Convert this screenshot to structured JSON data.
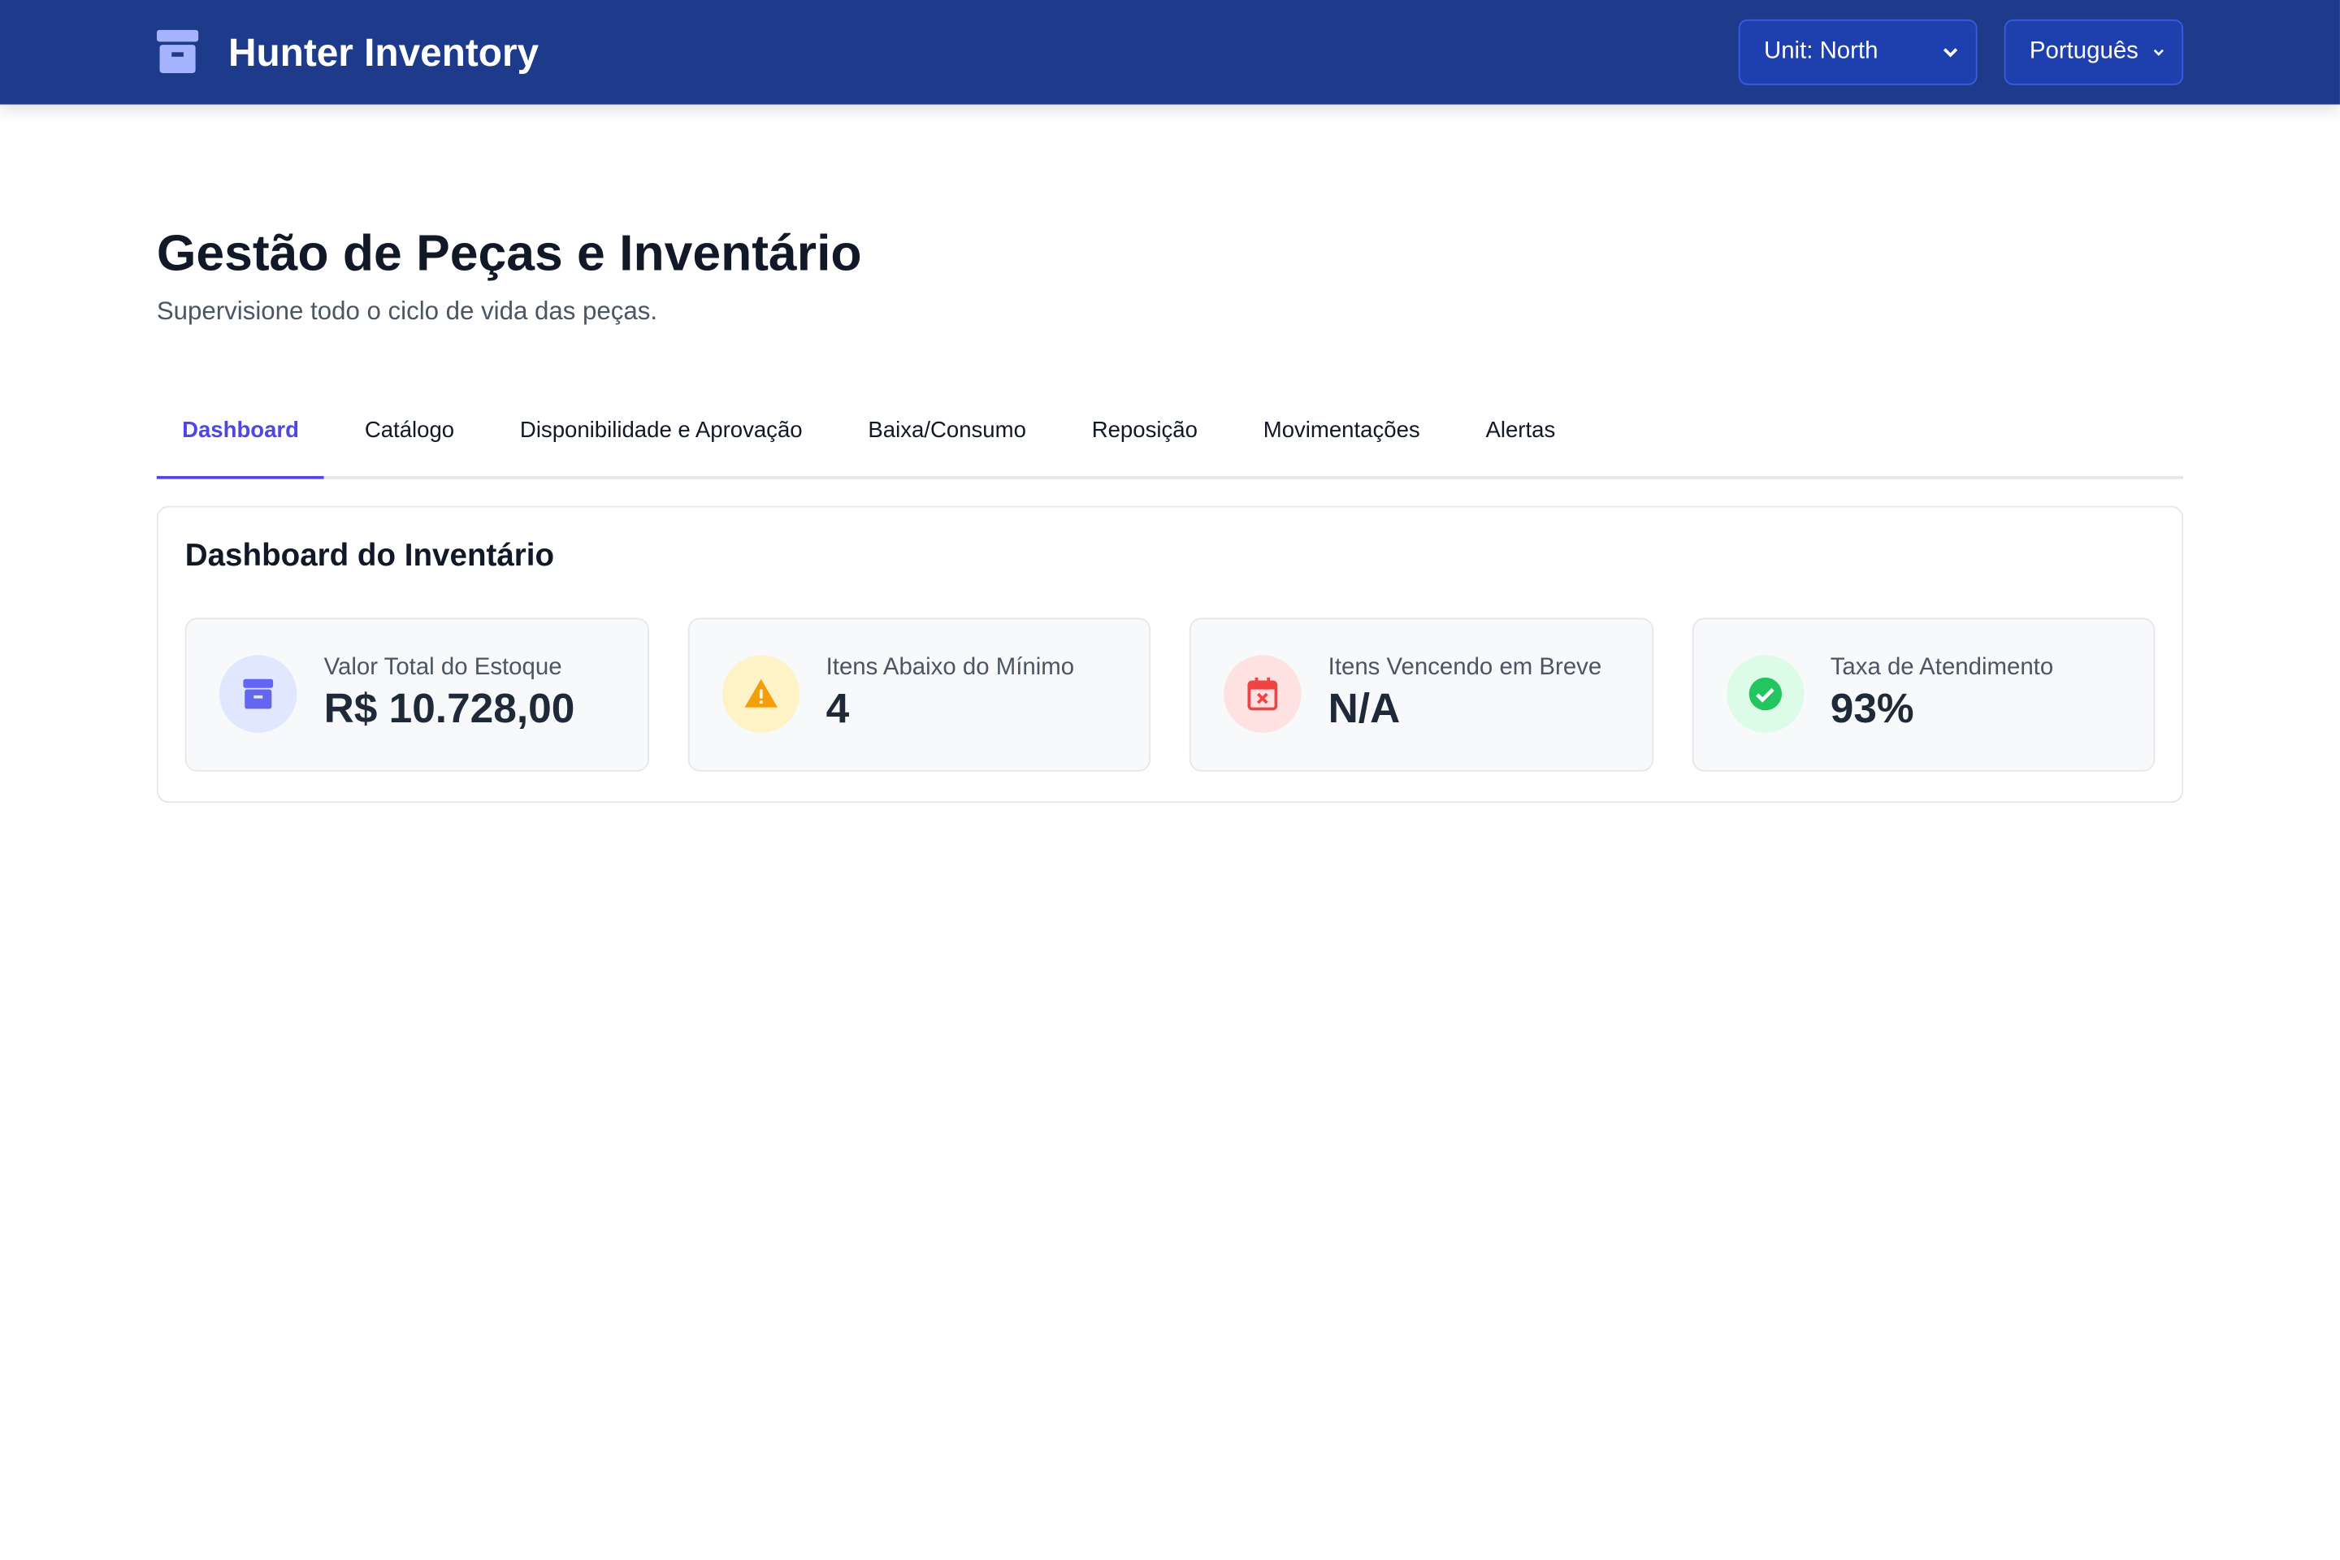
{
  "header": {
    "title": "Hunter Inventory",
    "unit_select": "Unit: North",
    "language_select": "Português"
  },
  "page": {
    "title": "Gestão de Peças e Inventário",
    "subtitle": "Supervisione todo o ciclo de vida das peças."
  },
  "tabs": [
    "Dashboard",
    "Catálogo",
    "Disponibilidade e Aprovação",
    "Baixa/Consumo",
    "Reposição",
    "Movimentações",
    "Alertas"
  ],
  "panel": {
    "title": "Dashboard do Inventário",
    "stats": [
      {
        "label": "Valor Total do Estoque",
        "value": "R$ 10.728,00"
      },
      {
        "label": "Itens Abaixo do Mínimo",
        "value": "4"
      },
      {
        "label": "Itens Vencendo em Breve",
        "value": "N/A"
      },
      {
        "label": "Taxa de Atendimento",
        "value": "93%"
      }
    ]
  }
}
